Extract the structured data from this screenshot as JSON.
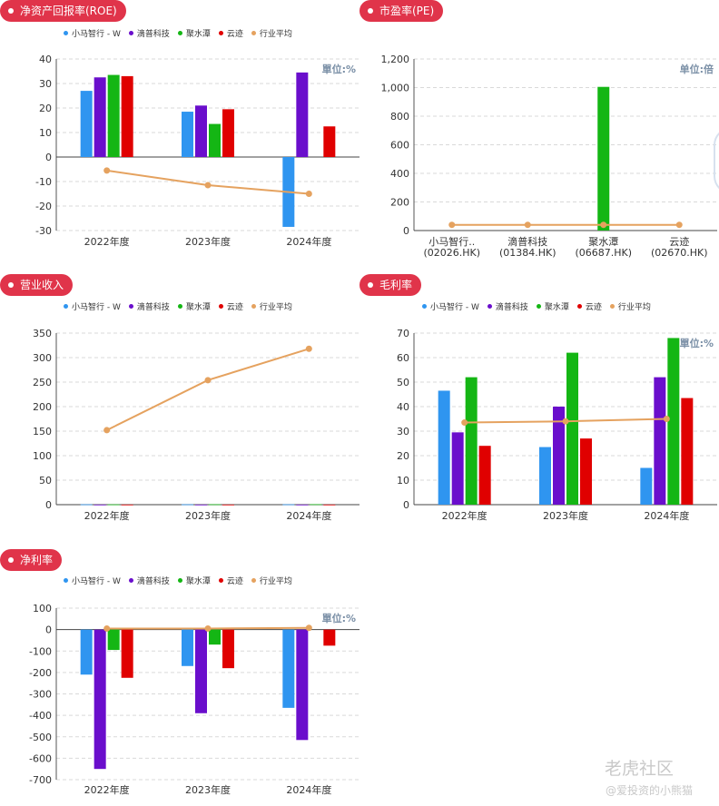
{
  "colors": {
    "xiaoma": "#2f95f0",
    "didi": "#6a0ecc",
    "jushui": "#14b614",
    "yunji": "#e00000",
    "avg": "#e5a25f",
    "pill": "#e0344a",
    "unit": "#7a8fa6"
  },
  "legend": [
    {
      "name": "小马智行 - W",
      "color": "#2f95f0"
    },
    {
      "name": "滴普科技",
      "color": "#6a0ecc"
    },
    {
      "name": "聚水潭",
      "color": "#14b614"
    },
    {
      "name": "云迹",
      "color": "#e00000"
    },
    {
      "name": "行业平均",
      "color": "#e5a25f"
    }
  ],
  "watermark": {
    "brand": "老虎社区",
    "author": "@爱投资的小熊猫"
  },
  "chart_data": [
    {
      "id": "roe",
      "type": "bar",
      "title": "净资产回报率(ROE)",
      "unit": "單位:%",
      "categories": [
        "2022年度",
        "2023年度",
        "2024年度"
      ],
      "ylim": [
        -30,
        40
      ],
      "yticks": [
        40,
        30,
        20,
        10,
        0,
        -10,
        -20,
        -30
      ],
      "ytick_labels": [
        "40",
        "30",
        "20",
        "10",
        "0",
        "-10",
        "-20",
        "-30"
      ],
      "series": [
        {
          "name": "小马智行 - W",
          "values": [
            27,
            18.5,
            -28.5
          ]
        },
        {
          "name": "滴普科技",
          "values": [
            32.5,
            21,
            34.5
          ]
        },
        {
          "name": "聚水潭",
          "values": [
            33.5,
            13.5,
            null
          ]
        },
        {
          "name": "云迹",
          "values": [
            33,
            19.5,
            12.5
          ]
        }
      ],
      "line": {
        "name": "行业平均",
        "values": [
          -5.5,
          -11.5,
          -15
        ]
      }
    },
    {
      "id": "pe",
      "type": "bar",
      "title": "市盈率(PE)",
      "unit": "单位:倍",
      "categories": [
        "小马智行..\n(02026.HK)",
        "滴普科技\n(01384.HK)",
        "聚水潭\n(06687.HK)",
        "云迹\n(02670.HK)"
      ],
      "ylim": [
        0,
        1200
      ],
      "yticks": [
        1200,
        1000,
        800,
        600,
        400,
        200,
        0
      ],
      "ytick_labels": [
        "1,200",
        "1,000",
        "800",
        "600",
        "400",
        "200",
        "0"
      ],
      "series": [
        {
          "name": "市盈率",
          "values": [
            0,
            0,
            1005,
            0
          ],
          "colors": [
            "#2f95f0",
            "#6a0ecc",
            "#14b614",
            "#e00000"
          ]
        }
      ],
      "line": {
        "name": "行业平均",
        "values": [
          40,
          40,
          40,
          40
        ]
      }
    },
    {
      "id": "revenue",
      "type": "bar",
      "title": "营业收入",
      "unit": "",
      "categories": [
        "2022年度",
        "2023年度",
        "2024年度"
      ],
      "ylim": [
        0,
        350
      ],
      "yticks": [
        350,
        300,
        250,
        200,
        150,
        100,
        50,
        0
      ],
      "ytick_labels": [
        "350",
        "300",
        "250",
        "200",
        "150",
        "100",
        "50",
        "0"
      ],
      "series": [
        {
          "name": "小马智行 - W",
          "values": [
            0.7,
            0.7,
            0.7
          ]
        },
        {
          "name": "滴普科技",
          "values": [
            0.2,
            0.2,
            0.2
          ]
        },
        {
          "name": "聚水潭",
          "values": [
            0.6,
            0.8,
            0.9
          ]
        },
        {
          "name": "云迹",
          "values": [
            0.2,
            0.2,
            0.2
          ]
        }
      ],
      "line": {
        "name": "行业平均",
        "values": [
          152,
          254,
          318
        ]
      }
    },
    {
      "id": "gross",
      "type": "bar",
      "title": "毛利率",
      "unit": "單位:%",
      "categories": [
        "2022年度",
        "2023年度",
        "2024年度"
      ],
      "ylim": [
        0,
        70
      ],
      "yticks": [
        70,
        60,
        50,
        40,
        30,
        20,
        10,
        0
      ],
      "ytick_labels": [
        "70",
        "60",
        "50",
        "40",
        "30",
        "20",
        "10",
        "0"
      ],
      "series": [
        {
          "name": "小马智行 - W",
          "values": [
            46.5,
            23.5,
            15
          ]
        },
        {
          "name": "滴普科技",
          "values": [
            29.5,
            40,
            52
          ]
        },
        {
          "name": "聚水潭",
          "values": [
            52,
            62,
            68
          ]
        },
        {
          "name": "云迹",
          "values": [
            24,
            27,
            43.5
          ]
        }
      ],
      "line": {
        "name": "行业平均",
        "values": [
          33.5,
          34,
          35
        ]
      }
    },
    {
      "id": "net",
      "type": "bar",
      "title": "净利率",
      "unit": "單位:%",
      "categories": [
        "2022年度",
        "2023年度",
        "2024年度"
      ],
      "ylim": [
        -700,
        100
      ],
      "yticks": [
        100,
        0,
        -100,
        -200,
        -300,
        -400,
        -500,
        -600,
        -700
      ],
      "ytick_labels": [
        "100",
        "0",
        "-100",
        "-200",
        "-300",
        "-400",
        "-500",
        "-600",
        "-700"
      ],
      "series": [
        {
          "name": "小马智行 - W",
          "values": [
            -210,
            -170,
            -365
          ]
        },
        {
          "name": "滴普科技",
          "values": [
            -650,
            -390,
            -515
          ]
        },
        {
          "name": "聚水潭",
          "values": [
            -95,
            -70,
            null
          ]
        },
        {
          "name": "云迹",
          "values": [
            -225,
            -180,
            -75
          ]
        }
      ],
      "line": {
        "name": "行业平均",
        "values": [
          5,
          5,
          8
        ]
      }
    }
  ]
}
